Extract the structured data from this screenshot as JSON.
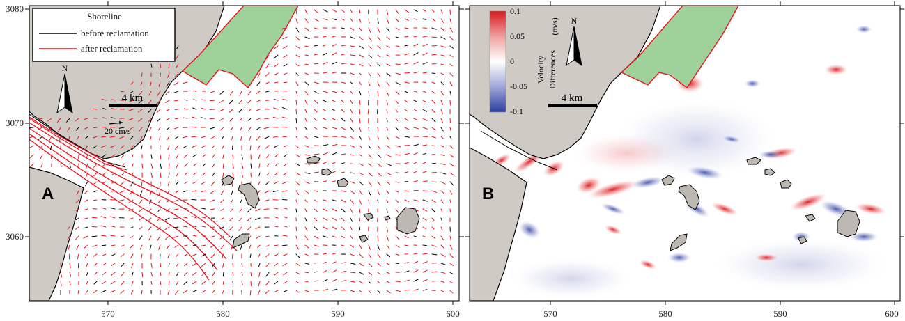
{
  "panels": {
    "a": {
      "letter": "A",
      "legend": {
        "title": "Shoreline",
        "items": [
          {
            "label": "before reclamation",
            "color": "#000000"
          },
          {
            "label": "after reclamation",
            "color": "#e8101a"
          }
        ]
      },
      "north_label": "N",
      "scale_label": "4 km",
      "reference_vector_label": "20 cm/s",
      "x_ticks": [
        "570",
        "580",
        "590",
        "600"
      ],
      "y_ticks": [
        "3080",
        "3070",
        "3060"
      ]
    },
    "b": {
      "letter": "B",
      "colorbar": {
        "title_line1": "Velocity",
        "title_line2": "Differences",
        "unit": "(m/s)",
        "ticks": [
          "0.1",
          "0.05",
          "0",
          "-0.05",
          "-0.1"
        ],
        "colors": {
          "high": "#d7191c",
          "mid": "#ffffff",
          "low": "#2c3e9e"
        }
      },
      "north_label": "N",
      "scale_label": "4 km",
      "x_ticks": [
        "570",
        "580",
        "590",
        "600"
      ]
    }
  },
  "colors": {
    "land": "#cfcac4",
    "reclaimed": "#9fd29a",
    "after_line": "#e8101a",
    "before_line": "#000000",
    "positive": "#d7191c",
    "negative": "#3a4ca8"
  }
}
